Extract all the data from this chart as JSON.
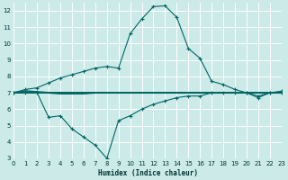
{
  "xlabel": "Humidex (Indice chaleur)",
  "bg_color": "#cceae7",
  "grid_color": "#ffffff",
  "line_color": "#006666",
  "x_min": 0,
  "x_max": 23,
  "y_min": 3,
  "y_max": 12.5,
  "line_upper_x": [
    0,
    1,
    2,
    3,
    4,
    5,
    6,
    7,
    8,
    9,
    10,
    11,
    12,
    13,
    14,
    15,
    16,
    17,
    18,
    19,
    20,
    21,
    22,
    23
  ],
  "line_upper_y": [
    7.0,
    7.2,
    7.3,
    7.6,
    7.9,
    8.1,
    8.3,
    8.5,
    8.6,
    8.5,
    10.6,
    11.5,
    12.25,
    12.3,
    11.6,
    9.7,
    9.1,
    7.7,
    7.5,
    7.2,
    7.0,
    6.7,
    7.0,
    7.1
  ],
  "line_lower_x": [
    0,
    1,
    2,
    3,
    4,
    5,
    6,
    7,
    8,
    9,
    10,
    11,
    12,
    13,
    14,
    15,
    16,
    17,
    18,
    19,
    20,
    21,
    22,
    23
  ],
  "line_lower_y": [
    7.0,
    7.0,
    7.0,
    5.5,
    5.6,
    4.8,
    4.3,
    3.8,
    3.0,
    5.3,
    5.6,
    6.0,
    6.3,
    6.5,
    6.7,
    6.8,
    6.8,
    7.0,
    7.0,
    7.0,
    7.0,
    6.8,
    7.0,
    7.0
  ],
  "line_flat1_x": [
    0,
    1,
    2,
    3,
    4,
    5,
    6,
    7,
    8,
    9,
    10,
    11,
    12,
    13,
    14,
    15,
    16,
    17,
    18,
    19,
    20,
    21,
    22,
    23
  ],
  "line_flat1_y": [
    7.0,
    7.1,
    7.05,
    7.0,
    6.95,
    6.95,
    6.95,
    7.0,
    7.0,
    7.0,
    7.0,
    7.0,
    7.0,
    7.0,
    7.0,
    7.0,
    7.0,
    7.0,
    7.0,
    7.0,
    7.0,
    7.0,
    7.0,
    7.0
  ],
  "line_flat2_x": [
    0,
    1,
    2,
    3,
    4,
    5,
    6,
    7,
    8,
    9,
    10,
    11,
    12,
    13,
    14,
    15,
    16,
    17,
    18,
    19,
    20,
    21,
    22,
    23
  ],
  "line_flat2_y": [
    7.0,
    7.0,
    7.0,
    7.0,
    7.0,
    7.0,
    7.0,
    7.0,
    7.0,
    7.0,
    7.0,
    7.0,
    7.0,
    7.0,
    7.0,
    7.0,
    7.0,
    7.0,
    7.0,
    7.0,
    7.0,
    7.0,
    7.0,
    7.0
  ]
}
